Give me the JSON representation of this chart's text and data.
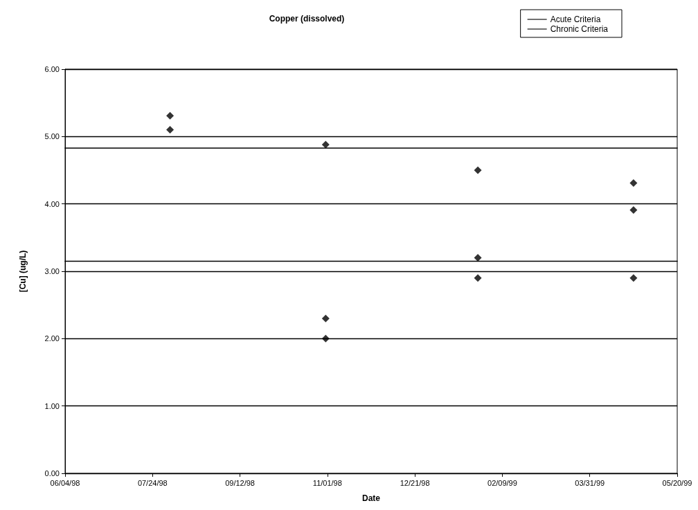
{
  "chart_data": {
    "type": "scatter",
    "title": "Copper (dissolved)",
    "xlabel": "Date",
    "ylabel": "[Cu] (ug/L)",
    "xlim": [
      "1998-06-04",
      "1999-05-20"
    ],
    "xticks": [
      {
        "value": "1998-06-04",
        "label": "06/04/98"
      },
      {
        "value": "1998-07-24",
        "label": "07/24/98"
      },
      {
        "value": "1998-09-12",
        "label": "09/12/98"
      },
      {
        "value": "1998-11-01",
        "label": "11/01/98"
      },
      {
        "value": "1998-12-21",
        "label": "12/21/98"
      },
      {
        "value": "1999-02-09",
        "label": "02/09/99"
      },
      {
        "value": "1999-03-31",
        "label": "03/31/99"
      },
      {
        "value": "1999-05-20",
        "label": "05/20/99"
      }
    ],
    "ylim": [
      0,
      6
    ],
    "yticks": [
      {
        "value": 0,
        "label": "0.00"
      },
      {
        "value": 1,
        "label": "1.00"
      },
      {
        "value": 2,
        "label": "2.00"
      },
      {
        "value": 3,
        "label": "3.00"
      },
      {
        "value": 4,
        "label": "4.00"
      },
      {
        "value": 5,
        "label": "5.00"
      },
      {
        "value": 6,
        "label": "6.00"
      }
    ],
    "grid": "y",
    "legend": "top right",
    "marker": "diamond",
    "series": [
      {
        "color": "#000000",
        "x": [
          "1998-08-03",
          "1998-08-03",
          "1998-10-31",
          "1998-10-31",
          "1998-10-31",
          "1999-01-26",
          "1999-01-26",
          "1999-01-26",
          "1999-04-25",
          "1999-04-25",
          "1999-04-25"
        ],
        "values": [
          5.31,
          5.1,
          4.88,
          2.3,
          2.0,
          4.5,
          3.2,
          2.9,
          4.31,
          3.91,
          2.9
        ]
      },
      {
        "type": "line",
        "name": "Acute Criteria",
        "color": "#000000",
        "marker": "none",
        "x": [
          "1998-06-04",
          "1999-05-20"
        ],
        "values": [
          4.83,
          4.83
        ]
      },
      {
        "type": "line",
        "name": "Chronic Criteria",
        "color": "#000000",
        "marker": "none",
        "x": [
          "1998-06-04",
          "1999-05-20"
        ],
        "values": [
          3.15,
          3.15
        ]
      }
    ]
  }
}
